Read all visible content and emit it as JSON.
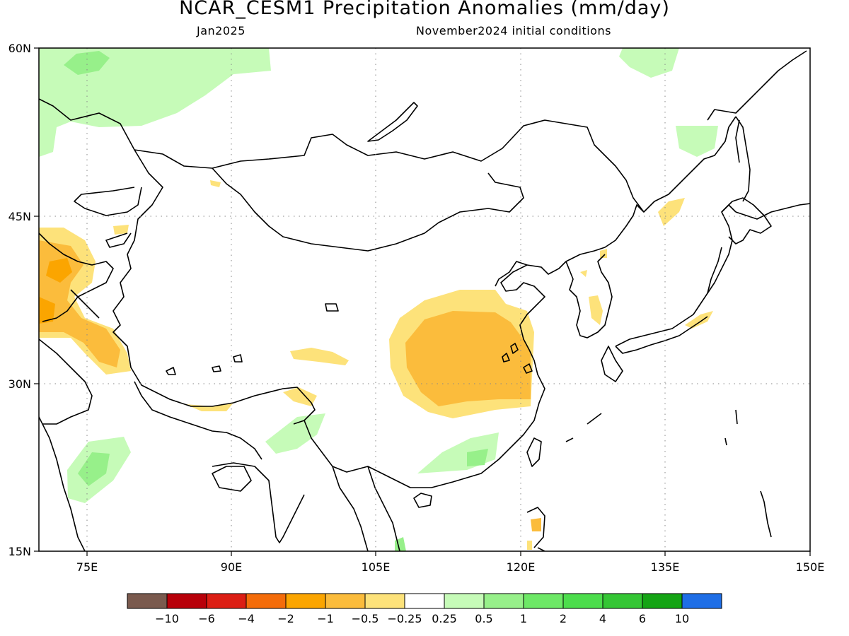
{
  "title": "NCAR_CESM1 Precipitation Anomalies (mm/day)",
  "subtitle_left": "Jan2025",
  "subtitle_right": "November2024 initial conditions",
  "map": {
    "lon_range": [
      70,
      150
    ],
    "lat_range": [
      15,
      60
    ],
    "lon_ticks": [
      "75E",
      "90E",
      "105E",
      "120E",
      "135E",
      "150E"
    ],
    "lat_ticks": [
      "60N",
      "45N",
      "30N",
      "15N"
    ]
  },
  "colorbar": {
    "colors": [
      "#7a5a4e",
      "#b8000a",
      "#dc1e14",
      "#f46c0a",
      "#fba500",
      "#fbbc3c",
      "#fde27a",
      "#ffffff",
      "#c6fbb8",
      "#97f08a",
      "#6de866",
      "#4cdd4c",
      "#34c634",
      "#14a414",
      "#1e6ee6"
    ],
    "labels": [
      "-10",
      "-6",
      "-4",
      "-2",
      "-1",
      "-0.5",
      "-0.25",
      "0.25",
      "0.5",
      "1",
      "2",
      "4",
      "6",
      "10"
    ]
  }
}
